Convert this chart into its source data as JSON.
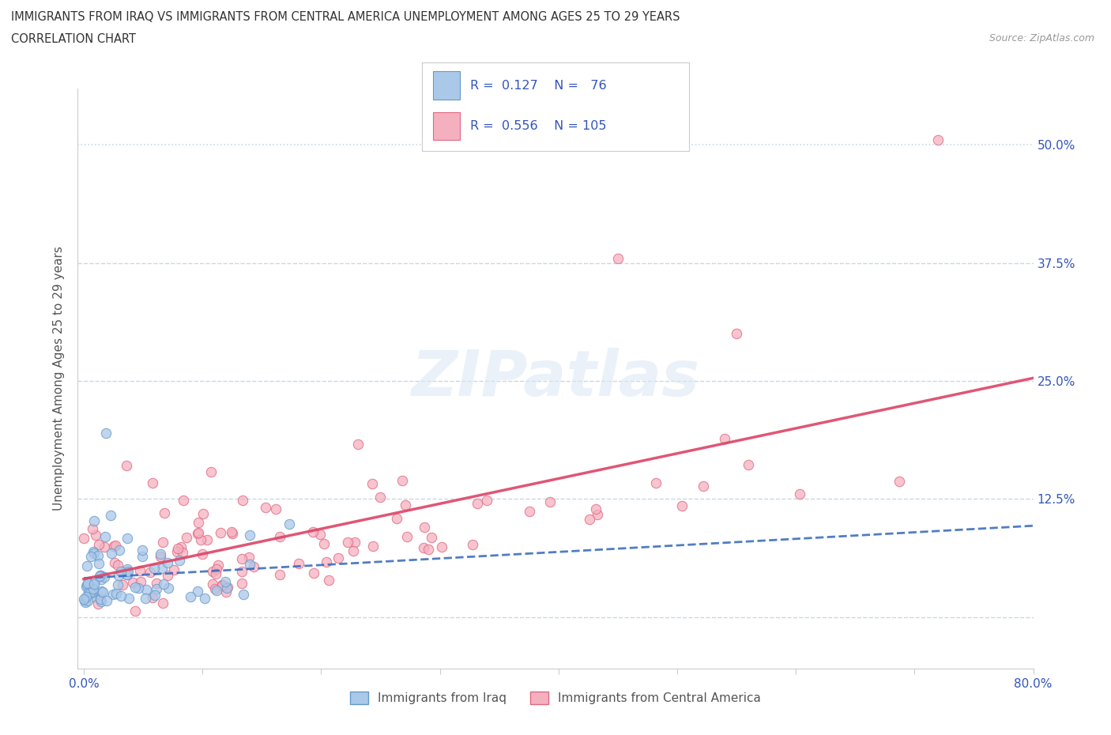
{
  "title_line1": "IMMIGRANTS FROM IRAQ VS IMMIGRANTS FROM CENTRAL AMERICA UNEMPLOYMENT AMONG AGES 25 TO 29 YEARS",
  "title_line2": "CORRELATION CHART",
  "source_text": "Source: ZipAtlas.com",
  "ylabel": "Unemployment Among Ages 25 to 29 years",
  "xlim": [
    0.0,
    0.8
  ],
  "ylim_min": -0.055,
  "ylim_max": 0.56,
  "y_tick_labels_right": [
    "",
    "12.5%",
    "25.0%",
    "37.5%",
    "50.0%"
  ],
  "y_ticks_right": [
    0.0,
    0.125,
    0.25,
    0.375,
    0.5
  ],
  "iraq_color": "#aac8e8",
  "iraq_color_edge": "#6699cc",
  "ca_color": "#f5b0c0",
  "ca_color_edge": "#e06880",
  "legend_iraq_label": "Immigrants from Iraq",
  "legend_ca_label": "Immigrants from Central America",
  "R_iraq": 0.127,
  "N_iraq": 76,
  "R_ca": 0.556,
  "N_ca": 105,
  "iraq_line_color": "#3366bb",
  "ca_line_color": "#dd4466",
  "watermark": "ZIPatlas",
  "background_color": "#ffffff",
  "grid_color": "#c8d8e8",
  "legend_text_color": "#3355bb"
}
